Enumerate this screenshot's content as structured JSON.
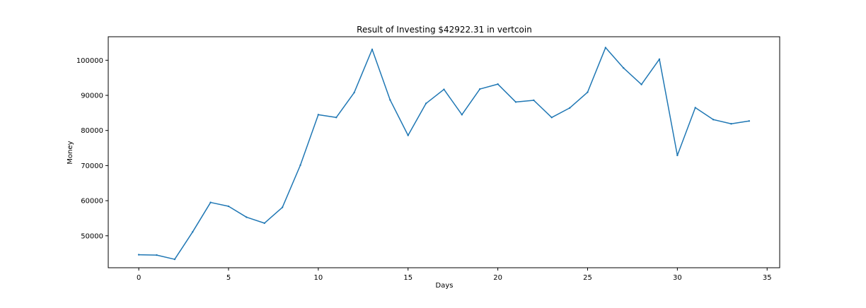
{
  "chart_data": {
    "type": "line",
    "title": "Result of Investing $42922.31 in vertcoin",
    "xlabel": "Days",
    "ylabel": "Money",
    "xlim": [
      -1.7,
      35.7
    ],
    "ylim": [
      40900,
      106700
    ],
    "xticks": [
      0,
      5,
      10,
      15,
      20,
      25,
      30,
      35
    ],
    "yticks": [
      50000,
      60000,
      70000,
      80000,
      90000,
      100000
    ],
    "xtick_labels": [
      "0",
      "5",
      "10",
      "15",
      "20",
      "25",
      "30",
      "35"
    ],
    "ytick_labels": [
      "50000",
      "60000",
      "70000",
      "80000",
      "90000",
      "100000"
    ],
    "grid": false,
    "series": [
      {
        "color": "#1f77b4",
        "x": [
          0,
          1,
          2,
          3,
          4,
          5,
          6,
          7,
          8,
          9,
          10,
          11,
          12,
          13,
          14,
          15,
          16,
          17,
          18,
          19,
          20,
          21,
          22,
          23,
          24,
          25,
          26,
          27,
          28,
          29,
          30,
          31,
          32,
          33,
          34
        ],
        "values": [
          44600,
          44500,
          43300,
          51100,
          59500,
          58400,
          55300,
          53600,
          58100,
          70100,
          84500,
          83700,
          90800,
          103100,
          88700,
          78600,
          87700,
          91700,
          84500,
          91800,
          93200,
          88100,
          88600,
          83700,
          86400,
          90900,
          103600,
          97800,
          93100,
          100300,
          72900,
          86500,
          83100,
          81900,
          82700
        ]
      }
    ]
  }
}
